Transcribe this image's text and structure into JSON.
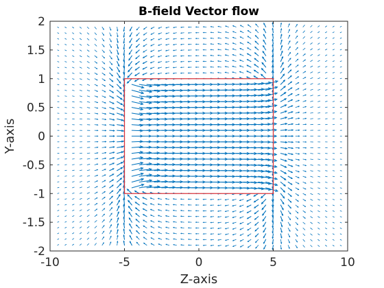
{
  "chart_data": {
    "type": "quiver",
    "title": "B-field Vector flow",
    "xlabel": "Z-axis",
    "ylabel": "Y-axis",
    "xlim": [
      -10,
      10
    ],
    "ylim": [
      -2,
      2
    ],
    "xticks": [
      -10,
      -5,
      0,
      5,
      10
    ],
    "xtick_labels": [
      "-10",
      "-5",
      "0",
      "5",
      "10"
    ],
    "yticks": [
      -2,
      -1.5,
      -1,
      -0.5,
      0,
      0.5,
      1,
      1.5,
      2
    ],
    "ytick_labels": [
      "-2",
      "-1.5",
      "-1",
      "-0.5",
      "0",
      "0.5",
      "1",
      "1.5",
      "2"
    ],
    "grid": false,
    "legend": "none",
    "field_grid": {
      "z_range": [
        -9.5,
        9.5
      ],
      "z_count": 39,
      "y_range": [
        -1.9,
        1.9
      ],
      "y_count": 39
    },
    "magnet_outline": {
      "z": [
        -5,
        5,
        5,
        -5,
        -5
      ],
      "y": [
        1,
        1,
        -1,
        -1,
        1
      ]
    },
    "colors": {
      "arrows": "#0072BD",
      "outline": "#D9343B",
      "axes": "#262626",
      "background": "#FFFFFF"
    }
  }
}
